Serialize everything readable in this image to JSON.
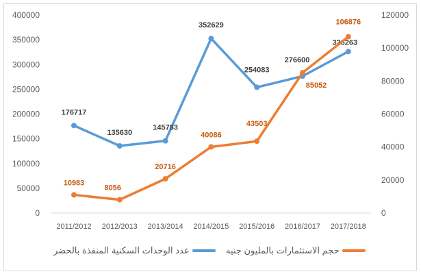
{
  "chart_data": {
    "type": "line",
    "categories": [
      "2011/2012",
      "2012/2013",
      "2013/2014",
      "2014/2015",
      "2015/2016",
      "2016/2017",
      "2017/2018"
    ],
    "series": [
      {
        "name": "عدد الوحدات السكنية المنفذة بالحضر",
        "axis": "left",
        "color": "#5b9bd5",
        "label_color": "#404040",
        "values": [
          176717,
          135630,
          145783,
          352629,
          254083,
          276600,
          326263
        ]
      },
      {
        "name": "حجم الاستثمارات بالمليون جنيه",
        "axis": "right",
        "color": "#ed7d31",
        "label_color": "#c55a11",
        "values": [
          10983,
          8056,
          20716,
          40086,
          43503,
          85052,
          106876
        ]
      }
    ],
    "y_left": {
      "min": 0,
      "max": 400000,
      "ticks": [
        "0",
        "50000",
        "100000",
        "150000",
        "200000",
        "250000",
        "300000",
        "350000",
        "400000"
      ]
    },
    "y_right": {
      "min": 0,
      "max": 120000,
      "ticks": [
        "0",
        "20000",
        "40000",
        "60000",
        "80000",
        "100000",
        "120000"
      ]
    },
    "grid": false,
    "legend_position": "bottom"
  }
}
